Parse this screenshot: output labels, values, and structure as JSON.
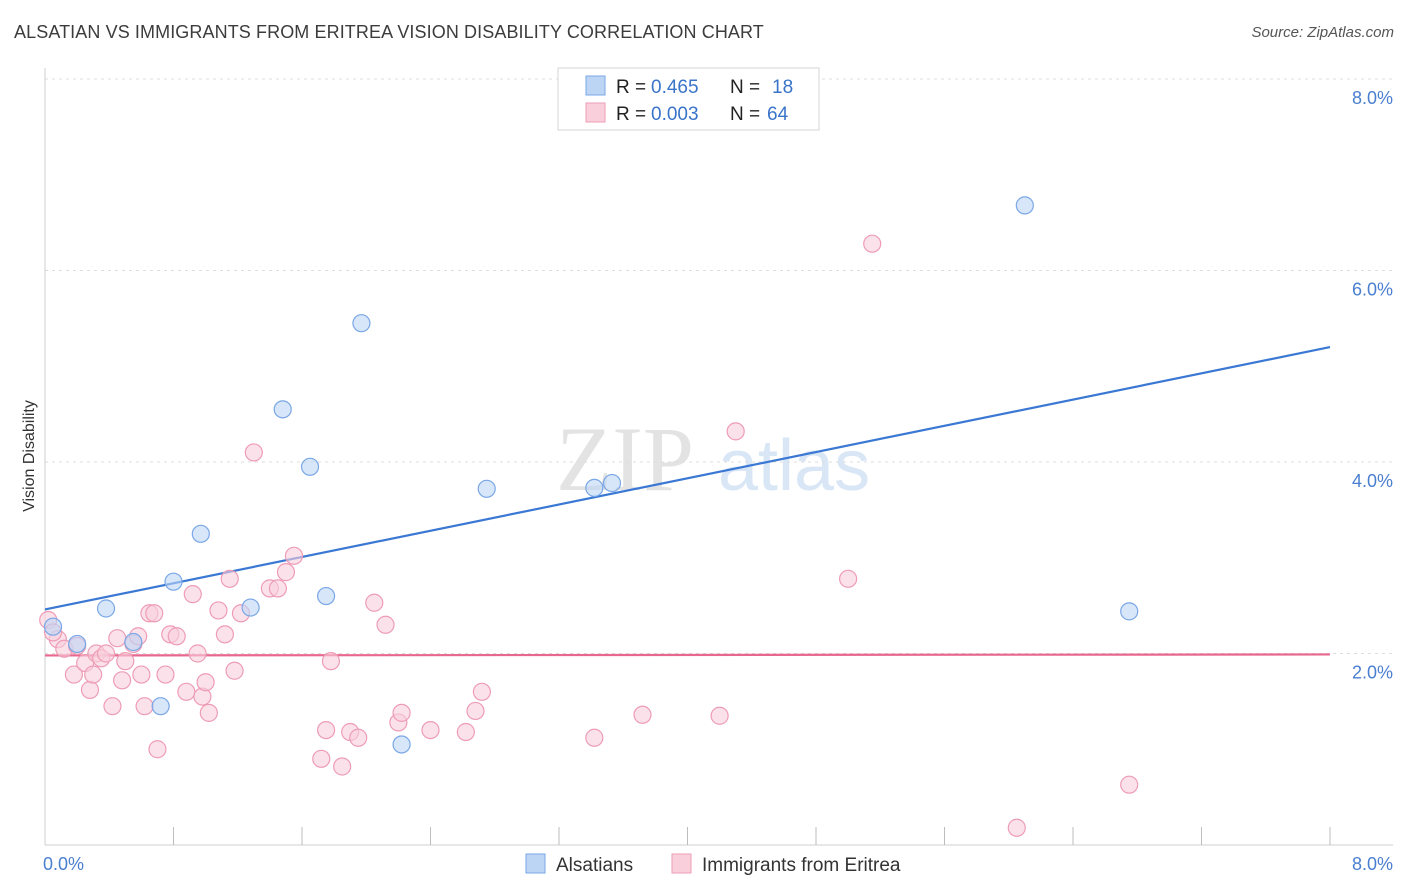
{
  "header": {
    "title": "ALSATIAN VS IMMIGRANTS FROM ERITREA VISION DISABILITY CORRELATION CHART",
    "source": "Source: ZipAtlas.com"
  },
  "watermark": {
    "zip": "ZIP",
    "atlas": "atlas"
  },
  "legend_top": [
    {
      "r_label": "R =",
      "r_value": "0.465",
      "n_label": "N =",
      "n_value": "18",
      "color": "#a9c8f0",
      "stroke": "#6a9be0"
    },
    {
      "r_label": "R =",
      "r_value": "0.003",
      "n_label": "N =",
      "n_value": "64",
      "color": "#f9c6d4",
      "stroke": "#ec8fab"
    }
  ],
  "colors": {
    "blue_fill": "#bcd5f5",
    "blue_stroke": "#7aa7e6",
    "blue_line": "#3a78d4",
    "pink_fill": "#f9cfdc",
    "pink_stroke": "#ee9cb6",
    "pink_line": "#e8678f"
  },
  "chart_data": {
    "type": "scatter",
    "xlabel": "",
    "ylabel": "Vision Disability",
    "xlim": [
      0,
      8.0
    ],
    "ylim": [
      0,
      8.0
    ],
    "x_tick_labels": [
      "0.0%",
      "8.0%"
    ],
    "y_ticks": [
      2.0,
      4.0,
      6.0,
      8.0
    ],
    "y_tick_labels": [
      "2.0%",
      "4.0%",
      "6.0%",
      "8.0%"
    ],
    "grid": true,
    "legend_position": "top-center",
    "series": [
      {
        "name": "Alsatians",
        "trend": {
          "x": [
            0.0,
            8.0
          ],
          "y": [
            2.46,
            5.2
          ]
        },
        "points": [
          [
            0.05,
            2.28
          ],
          [
            0.2,
            2.1
          ],
          [
            0.38,
            2.47
          ],
          [
            0.55,
            2.12
          ],
          [
            0.72,
            1.45
          ],
          [
            0.8,
            2.75
          ],
          [
            0.97,
            3.25
          ],
          [
            1.28,
            2.48
          ],
          [
            1.48,
            4.55
          ],
          [
            1.65,
            3.95
          ],
          [
            1.75,
            2.6
          ],
          [
            1.97,
            5.45
          ],
          [
            2.22,
            1.05
          ],
          [
            2.75,
            3.72
          ],
          [
            3.42,
            3.73
          ],
          [
            3.53,
            3.78
          ],
          [
            6.1,
            6.68
          ],
          [
            6.75,
            2.44
          ]
        ]
      },
      {
        "name": "Immigrants from Eritrea",
        "trend": {
          "x": [
            0.0,
            8.0
          ],
          "y": [
            1.98,
            1.99
          ]
        },
        "points": [
          [
            0.02,
            2.35
          ],
          [
            0.08,
            2.15
          ],
          [
            0.12,
            2.05
          ],
          [
            0.18,
            1.78
          ],
          [
            0.2,
            2.08
          ],
          [
            0.25,
            1.9
          ],
          [
            0.28,
            1.62
          ],
          [
            0.3,
            1.78
          ],
          [
            0.32,
            2.0
          ],
          [
            0.35,
            1.95
          ],
          [
            0.38,
            2.0
          ],
          [
            0.42,
            1.45
          ],
          [
            0.45,
            2.16
          ],
          [
            0.5,
            1.92
          ],
          [
            0.55,
            2.1
          ],
          [
            0.58,
            2.18
          ],
          [
            0.6,
            1.78
          ],
          [
            0.62,
            1.45
          ],
          [
            0.65,
            2.42
          ],
          [
            0.68,
            2.42
          ],
          [
            0.7,
            1.0
          ],
          [
            0.75,
            1.78
          ],
          [
            0.78,
            2.2
          ],
          [
            0.82,
            2.18
          ],
          [
            0.88,
            1.6
          ],
          [
            0.92,
            2.62
          ],
          [
            0.95,
            2.0
          ],
          [
            0.98,
            1.55
          ],
          [
            1.0,
            1.7
          ],
          [
            1.02,
            1.38
          ],
          [
            1.08,
            2.45
          ],
          [
            1.12,
            2.2
          ],
          [
            1.15,
            2.78
          ],
          [
            1.18,
            1.82
          ],
          [
            1.22,
            2.42
          ],
          [
            1.3,
            4.1
          ],
          [
            1.4,
            2.68
          ],
          [
            1.45,
            2.68
          ],
          [
            1.5,
            2.85
          ],
          [
            1.55,
            3.02
          ],
          [
            1.72,
            0.9
          ],
          [
            1.75,
            1.2
          ],
          [
            1.78,
            1.92
          ],
          [
            1.85,
            0.82
          ],
          [
            1.9,
            1.18
          ],
          [
            1.95,
            1.12
          ],
          [
            2.05,
            2.53
          ],
          [
            2.12,
            2.3
          ],
          [
            2.2,
            1.28
          ],
          [
            2.22,
            1.38
          ],
          [
            2.4,
            1.2
          ],
          [
            2.62,
            1.18
          ],
          [
            2.68,
            1.4
          ],
          [
            2.72,
            1.6
          ],
          [
            3.42,
            1.12
          ],
          [
            3.72,
            1.36
          ],
          [
            4.2,
            1.35
          ],
          [
            4.3,
            4.32
          ],
          [
            5.0,
            2.78
          ],
          [
            5.15,
            6.28
          ],
          [
            6.05,
            0.18
          ],
          [
            6.75,
            0.63
          ],
          [
            0.05,
            2.22
          ],
          [
            0.48,
            1.72
          ]
        ]
      }
    ]
  }
}
